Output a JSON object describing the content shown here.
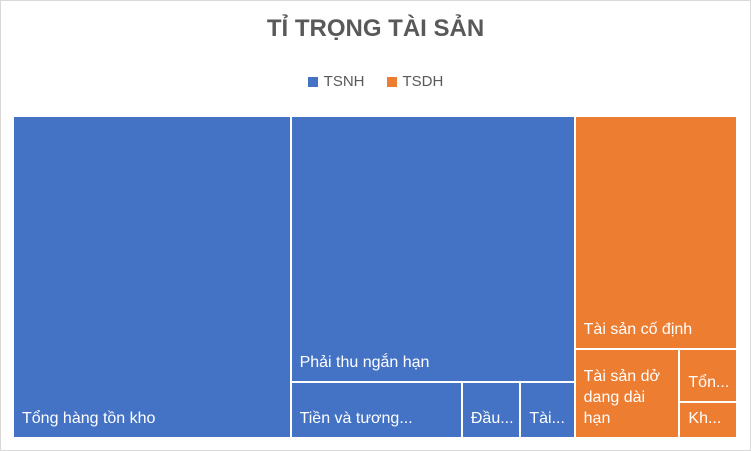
{
  "chart_data": {
    "type": "treemap",
    "title": "TỈ TRỌNG TÀI SẢN",
    "series": [
      {
        "name": "TSNH",
        "color": "#4472c4",
        "categories": [
          "Tổng hàng tồn kho",
          "Phải thu ngắn hạn",
          "Tiền và tương...",
          "Đầu...",
          "Tài..."
        ],
        "values": [
          38.3,
          32.4,
          4.1,
          1.4,
          1.3
        ]
      },
      {
        "name": "TSDH",
        "color": "#ed7d31",
        "categories": [
          "Tài sản cố định",
          "Tài sản dở dang dài hạn",
          "Tổn...",
          "Kh..."
        ],
        "values": [
          16.2,
          4.0,
          1.3,
          0.9
        ]
      }
    ]
  }
}
